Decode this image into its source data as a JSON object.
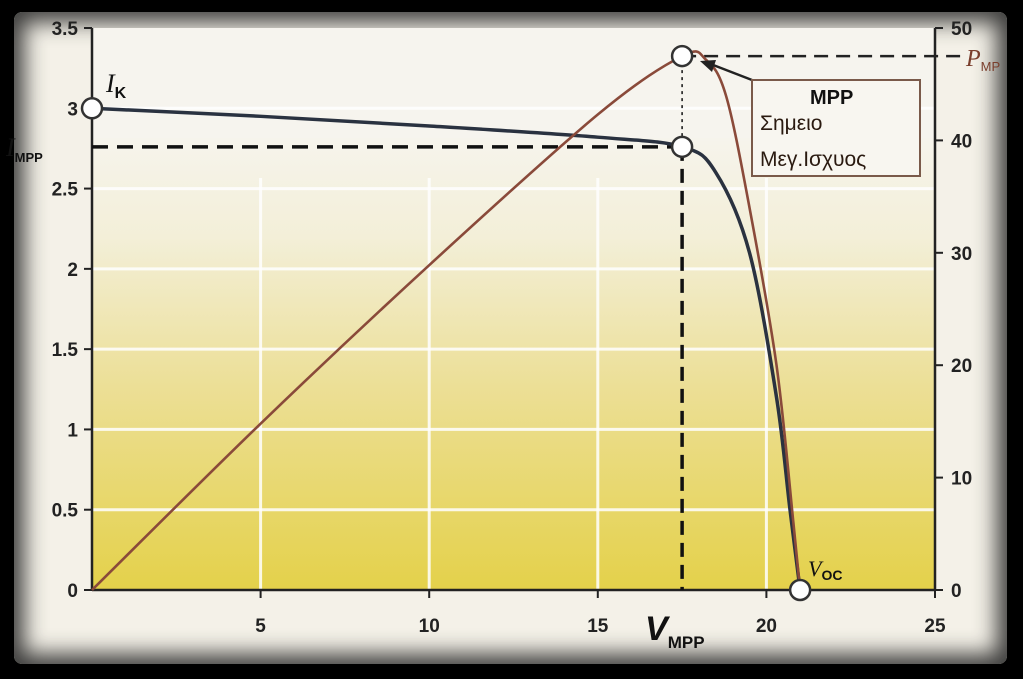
{
  "chart_data": {
    "type": "line",
    "x_ticks": [
      "5",
      "10",
      "15",
      "20",
      "25"
    ],
    "y_left_ticks": [
      "0",
      "0.5",
      "1",
      "1.5",
      "2",
      "2.5",
      "3",
      "3.5"
    ],
    "y_right_ticks": [
      "0",
      "10",
      "20",
      "30",
      "40",
      "50"
    ],
    "xlim": [
      0,
      25
    ],
    "ylim_left": [
      0,
      3.5
    ],
    "ylim_right": [
      0,
      50
    ],
    "grid": true,
    "series": [
      {
        "axis": "left",
        "color": "#2a3240",
        "points": [
          [
            0,
            3.0
          ],
          [
            5,
            2.95
          ],
          [
            10,
            2.89
          ],
          [
            15,
            2.82
          ],
          [
            17.5,
            2.76
          ],
          [
            18.5,
            2.6
          ],
          [
            19.5,
            2.1
          ],
          [
            20.3,
            1.2
          ],
          [
            20.7,
            0.5
          ],
          [
            21,
            0.0
          ]
        ]
      },
      {
        "axis": "right",
        "color": "#8a4a3a",
        "points": [
          [
            0,
            0
          ],
          [
            5,
            14.8
          ],
          [
            10,
            28.9
          ],
          [
            15,
            42.3
          ],
          [
            17.5,
            47.5
          ],
          [
            18.2,
            47.2
          ],
          [
            18.8,
            44
          ],
          [
            19.5,
            34
          ],
          [
            20.3,
            20
          ],
          [
            20.8,
            6
          ],
          [
            21,
            0
          ]
        ]
      }
    ],
    "annotations": {
      "ik": {
        "main": "I",
        "sub": "K"
      },
      "impp": {
        "main": "I",
        "sub": "MPP"
      },
      "pmpp": {
        "main": "P",
        "sub": "MP"
      },
      "vmpp": {
        "main": "V",
        "sub": "MPP"
      },
      "voc": {
        "main": "V",
        "sub": "OC"
      },
      "mpp_box": {
        "title": "MPP",
        "line1": "Σημειο",
        "line2": "Μεγ.Ισχυος"
      }
    },
    "mpp": {
      "x": 17.5,
      "current": 2.76,
      "power": 47.5
    },
    "ik_value": 3.0,
    "voc_value": 21
  }
}
